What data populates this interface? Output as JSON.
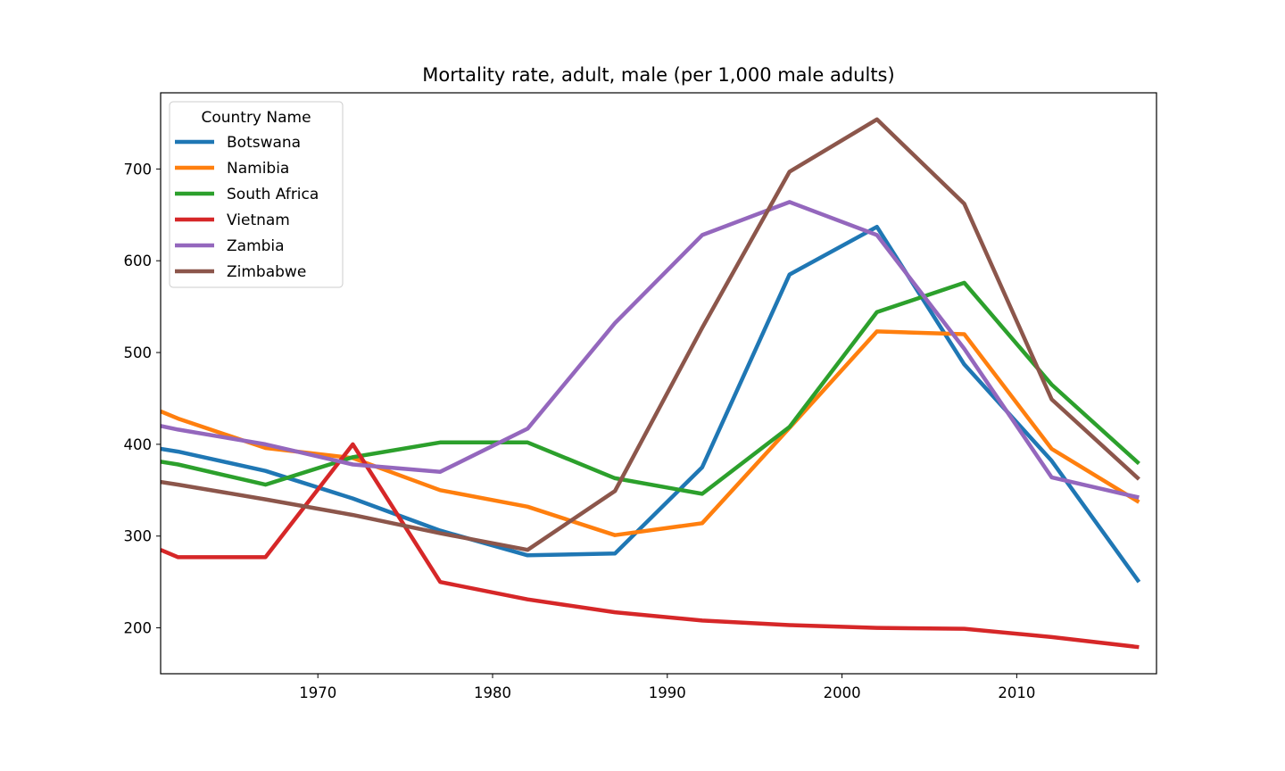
{
  "chart_data": {
    "type": "line",
    "title": "Mortality rate, adult, male (per 1,000 male adults)",
    "xlabel": "",
    "ylabel": "",
    "xlim": [
      1961,
      2018
    ],
    "ylim": [
      150,
      783
    ],
    "x_ticks": [
      1970,
      1980,
      1990,
      2000,
      2010
    ],
    "y_ticks": [
      200,
      300,
      400,
      500,
      600,
      700
    ],
    "grid": false,
    "legend": {
      "title": "Country Name",
      "placement": "top-left"
    },
    "x": [
      1961,
      1962,
      1967,
      1972,
      1977,
      1982,
      1987,
      1992,
      1997,
      2002,
      2007,
      2012,
      2017
    ],
    "series": [
      {
        "name": "Botswana",
        "color": "#1f77b4",
        "values": [
          395,
          392,
          371,
          341,
          306,
          279,
          281,
          375,
          585,
          637,
          487,
          382,
          250
        ]
      },
      {
        "name": "Namibia",
        "color": "#ff7f0e",
        "values": [
          436,
          428,
          396,
          385,
          350,
          332,
          301,
          314,
          418,
          523,
          520,
          395,
          337
        ]
      },
      {
        "name": "South Africa",
        "color": "#2ca02c",
        "values": [
          381,
          378,
          356,
          386,
          402,
          402,
          363,
          346,
          419,
          544,
          576,
          465,
          379
        ]
      },
      {
        "name": "Vietnam",
        "color": "#d62728",
        "values": [
          285,
          277,
          277,
          400,
          250,
          231,
          217,
          208,
          203,
          200,
          199,
          190,
          179
        ]
      },
      {
        "name": "Zambia",
        "color": "#9467bd",
        "values": [
          420,
          416,
          400,
          378,
          370,
          417,
          532,
          628,
          664,
          628,
          504,
          364,
          342
        ]
      },
      {
        "name": "Zimbabwe",
        "color": "#8c564b",
        "values": [
          359,
          356,
          340,
          323,
          303,
          285,
          349,
          527,
          697,
          754,
          662,
          449,
          362
        ]
      }
    ]
  }
}
